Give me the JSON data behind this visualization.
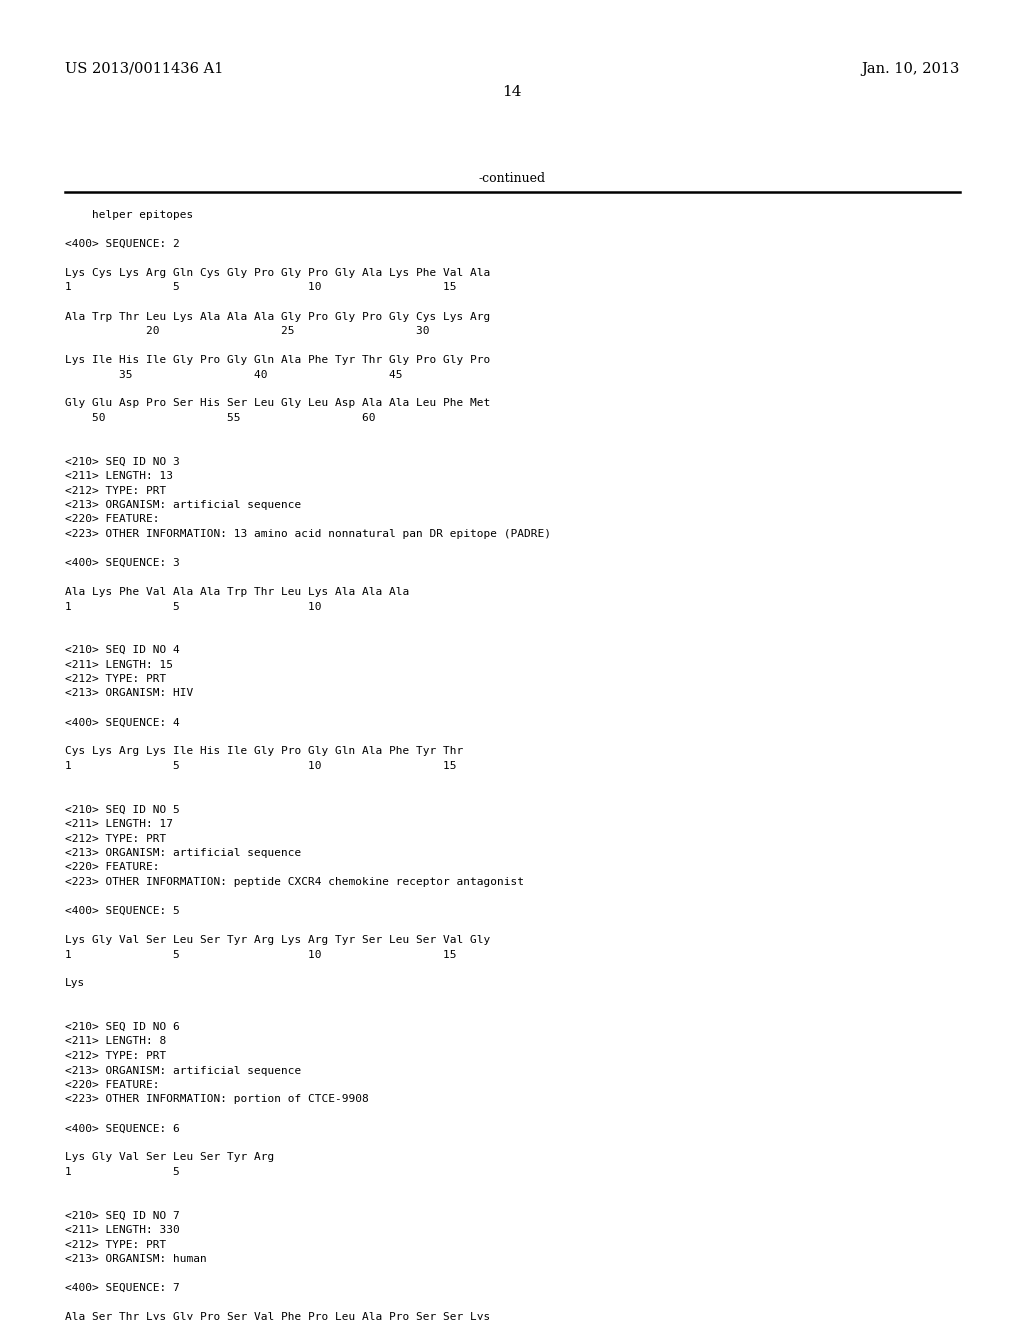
{
  "background_color": "#ffffff",
  "top_left_text": "US 2013/0011436 A1",
  "top_right_text": "Jan. 10, 2013",
  "page_number": "14",
  "continued_text": "-continued",
  "content": [
    "    helper epitopes",
    "",
    "<400> SEQUENCE: 2",
    "",
    "Lys Cys Lys Arg Gln Cys Gly Pro Gly Pro Gly Ala Lys Phe Val Ala",
    "1               5                   10                  15",
    "",
    "Ala Trp Thr Leu Lys Ala Ala Ala Gly Pro Gly Pro Gly Cys Lys Arg",
    "            20                  25                  30",
    "",
    "Lys Ile His Ile Gly Pro Gly Gln Ala Phe Tyr Thr Gly Pro Gly Pro",
    "        35                  40                  45",
    "",
    "Gly Glu Asp Pro Ser His Ser Leu Gly Leu Asp Ala Ala Leu Phe Met",
    "    50                  55                  60",
    "",
    "",
    "<210> SEQ ID NO 3",
    "<211> LENGTH: 13",
    "<212> TYPE: PRT",
    "<213> ORGANISM: artificial sequence",
    "<220> FEATURE:",
    "<223> OTHER INFORMATION: 13 amino acid nonnatural pan DR epitope (PADRE)",
    "",
    "<400> SEQUENCE: 3",
    "",
    "Ala Lys Phe Val Ala Ala Trp Thr Leu Lys Ala Ala Ala",
    "1               5                   10",
    "",
    "",
    "<210> SEQ ID NO 4",
    "<211> LENGTH: 15",
    "<212> TYPE: PRT",
    "<213> ORGANISM: HIV",
    "",
    "<400> SEQUENCE: 4",
    "",
    "Cys Lys Arg Lys Ile His Ile Gly Pro Gly Gln Ala Phe Tyr Thr",
    "1               5                   10                  15",
    "",
    "",
    "<210> SEQ ID NO 5",
    "<211> LENGTH: 17",
    "<212> TYPE: PRT",
    "<213> ORGANISM: artificial sequence",
    "<220> FEATURE:",
    "<223> OTHER INFORMATION: peptide CXCR4 chemokine receptor antagonist",
    "",
    "<400> SEQUENCE: 5",
    "",
    "Lys Gly Val Ser Leu Ser Tyr Arg Lys Arg Tyr Ser Leu Ser Val Gly",
    "1               5                   10                  15",
    "",
    "Lys",
    "",
    "",
    "<210> SEQ ID NO 6",
    "<211> LENGTH: 8",
    "<212> TYPE: PRT",
    "<213> ORGANISM: artificial sequence",
    "<220> FEATURE:",
    "<223> OTHER INFORMATION: portion of CTCE-9908",
    "",
    "<400> SEQUENCE: 6",
    "",
    "Lys Gly Val Ser Leu Ser Tyr Arg",
    "1               5",
    "",
    "",
    "<210> SEQ ID NO 7",
    "<211> LENGTH: 330",
    "<212> TYPE: PRT",
    "<213> ORGANISM: human",
    "",
    "<400> SEQUENCE: 7",
    "",
    "Ala Ser Thr Lys Gly Pro Ser Val Phe Pro Leu Ala Pro Ser Ser Lys"
  ]
}
